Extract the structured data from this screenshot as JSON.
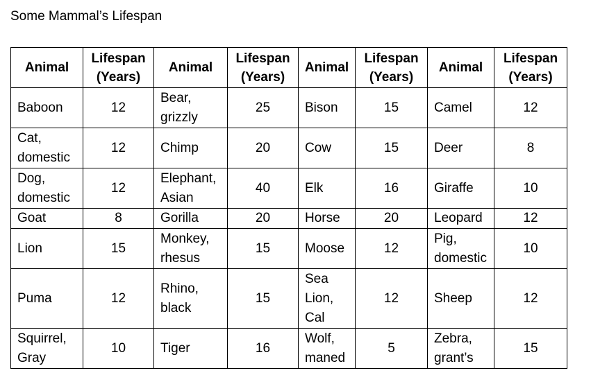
{
  "title": "Some Mammal’s Lifespan",
  "table": {
    "headers": [
      [
        "Animal"
      ],
      [
        "Lifespan",
        "(Years)"
      ],
      [
        "Animal"
      ],
      [
        "Lifespan",
        "(Years)"
      ],
      [
        "Animal"
      ],
      [
        "Lifespan",
        "(Years)"
      ],
      [
        "Animal"
      ],
      [
        "Lifespan",
        "(Years)"
      ]
    ],
    "rows": [
      [
        [
          "Baboon"
        ],
        "12",
        [
          "Bear,",
          "grizzly"
        ],
        "25",
        [
          "Bison"
        ],
        "15",
        [
          "Camel"
        ],
        "12"
      ],
      [
        [
          "Cat,",
          "domestic"
        ],
        "12",
        [
          "Chimp"
        ],
        "20",
        [
          "Cow"
        ],
        "15",
        [
          "Deer"
        ],
        "8"
      ],
      [
        [
          "Dog,",
          "domestic"
        ],
        "12",
        [
          "Elephant,",
          "Asian"
        ],
        "40",
        [
          "Elk"
        ],
        "16",
        [
          "Giraffe"
        ],
        "10"
      ],
      [
        [
          "Goat"
        ],
        "8",
        [
          "Gorilla"
        ],
        "20",
        [
          "Horse"
        ],
        "20",
        [
          "Leopard"
        ],
        "12"
      ],
      [
        [
          "Lion"
        ],
        "15",
        [
          "Monkey,",
          "rhesus"
        ],
        "15",
        [
          "Moose"
        ],
        "12",
        [
          "Pig,",
          "domestic"
        ],
        "10"
      ],
      [
        [
          "Puma"
        ],
        "12",
        [
          "Rhino,",
          "black"
        ],
        "15",
        [
          "Sea",
          "Lion,",
          "Cal"
        ],
        "12",
        [
          "Sheep"
        ],
        "12"
      ],
      [
        [
          "Squirrel,",
          "Gray"
        ],
        "10",
        [
          "Tiger"
        ],
        "16",
        [
          "Wolf,",
          "maned"
        ],
        "5",
        [
          "Zebra,",
          "grant’s"
        ],
        "15"
      ]
    ]
  }
}
